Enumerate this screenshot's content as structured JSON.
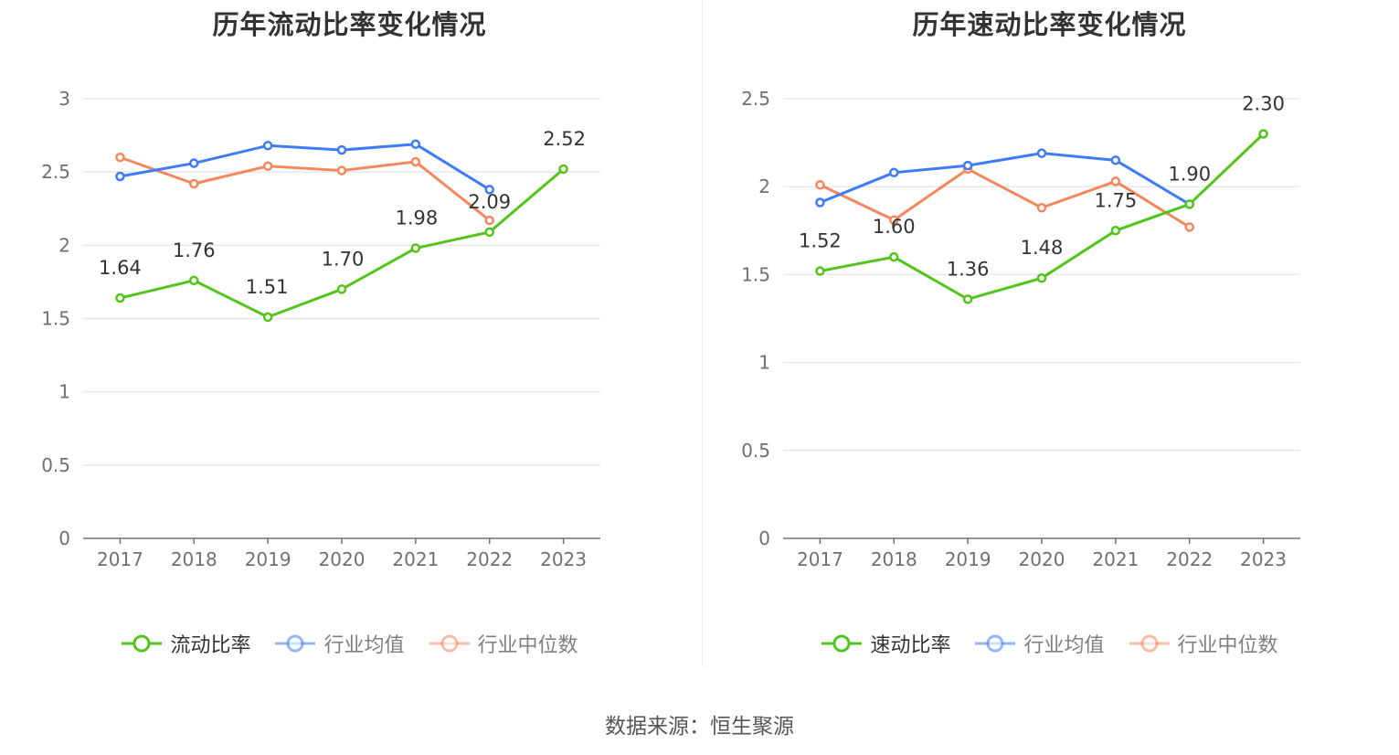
{
  "source": "数据来源：恒生聚源",
  "colors": {
    "company": "#52c41a",
    "avg": "#3e7bf6",
    "median": "#f5875d",
    "grid": "#e6e8f0",
    "axis": "#6e7079",
    "legend_active_text": "#333333",
    "legend_inactive_text": "#7f7f7f"
  },
  "chart_data": [
    {
      "type": "line",
      "title": "历年流动比率变化情况",
      "categories": [
        "2017",
        "2018",
        "2019",
        "2020",
        "2021",
        "2022",
        "2023"
      ],
      "y_ticks": [
        "0",
        "0.5",
        "1",
        "1.5",
        "2",
        "2.5",
        "3"
      ],
      "ylim": [
        0,
        3
      ],
      "grid": true,
      "legend_position": "bottom-center",
      "series": [
        {
          "name": "流动比率",
          "key": "company",
          "values": [
            1.64,
            1.76,
            1.51,
            1.7,
            1.98,
            2.09,
            2.52
          ],
          "labels": [
            "1.64",
            "1.76",
            "1.51",
            "1.70",
            "1.98",
            "2.09",
            "2.52"
          ]
        },
        {
          "name": "行业均值",
          "key": "avg",
          "values": [
            2.47,
            2.56,
            2.68,
            2.65,
            2.69,
            2.38,
            null
          ]
        },
        {
          "name": "行业中位数",
          "key": "median",
          "values": [
            2.6,
            2.42,
            2.54,
            2.51,
            2.57,
            2.17,
            null
          ]
        }
      ]
    },
    {
      "type": "line",
      "title": "历年速动比率变化情况",
      "categories": [
        "2017",
        "2018",
        "2019",
        "2020",
        "2021",
        "2022",
        "2023"
      ],
      "y_ticks": [
        "0",
        "0.5",
        "1",
        "1.5",
        "2",
        "2.5"
      ],
      "ylim": [
        0,
        2.5
      ],
      "grid": true,
      "legend_position": "bottom-center",
      "series": [
        {
          "name": "速动比率",
          "key": "company",
          "values": [
            1.52,
            1.6,
            1.36,
            1.48,
            1.75,
            1.9,
            2.3
          ],
          "labels": [
            "1.52",
            "1.60",
            "1.36",
            "1.48",
            "1.75",
            "1.90",
            "2.30"
          ]
        },
        {
          "name": "行业均值",
          "key": "avg",
          "values": [
            1.91,
            2.08,
            2.12,
            2.19,
            2.15,
            1.9,
            null
          ]
        },
        {
          "name": "行业中位数",
          "key": "median",
          "values": [
            2.01,
            1.81,
            2.1,
            1.88,
            2.03,
            1.77,
            null
          ]
        }
      ]
    }
  ]
}
